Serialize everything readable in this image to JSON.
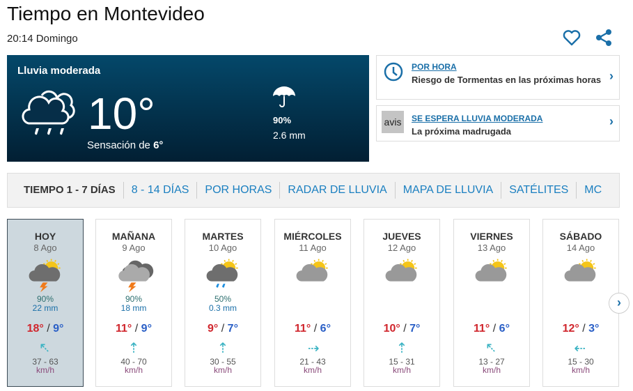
{
  "header": {
    "title": "Tiempo en Montevideo",
    "subtitle": "20:14 Domingo",
    "icons": [
      "heart-icon",
      "share-icon"
    ]
  },
  "now": {
    "condition": "Lluvia moderada",
    "temp": "10°",
    "feel_label": "Sensación de ",
    "feel_value": "6°",
    "rain_prob": "90%",
    "rain_mm": "2.6 mm",
    "icon": "cloud-rain-icon"
  },
  "alerts": [
    {
      "link": "POR HORA",
      "text": "Riesgo de Tormentas en las próximas horas",
      "icon": "clock-icon"
    },
    {
      "link": "SE ESPERA LLUVIA MODERADA",
      "text": "La próxima madrugada",
      "badge": "avis"
    }
  ],
  "tabs": [
    "TIEMPO 1 - 7 DÍAS",
    "8 - 14 DÍAS",
    "POR HORAS",
    "RADAR DE LLUVIA",
    "MAPA DE LLUVIA",
    "SATÉLITES",
    "MC"
  ],
  "colors": {
    "max": "#d0262d",
    "min": "#2a5fc6",
    "link": "#1a7fc0",
    "wind": "#3bb3c3"
  },
  "days": [
    {
      "name": "HOY",
      "date": "8 Ago",
      "icon": "storm-sun",
      "prob": "90%",
      "mm": "22 mm",
      "max": "18°",
      "min": "9°",
      "wind_dir": "NW",
      "wind": "37 - 63",
      "unit": "km/h"
    },
    {
      "name": "MAÑANA",
      "date": "9 Ago",
      "icon": "storm-cloudy",
      "prob": "90%",
      "mm": "18 mm",
      "max": "11°",
      "min": "9°",
      "wind_dir": "N",
      "wind": "40 - 70",
      "unit": "km/h"
    },
    {
      "name": "MARTES",
      "date": "10 Ago",
      "icon": "rain-sun",
      "prob": "50%",
      "mm": "0.3 mm",
      "max": "9°",
      "min": "7°",
      "wind_dir": "N",
      "wind": "30 - 55",
      "unit": "km/h"
    },
    {
      "name": "MIÉRCOLES",
      "date": "11 Ago",
      "icon": "cloud-sun",
      "prob": "",
      "mm": "",
      "max": "11°",
      "min": "6°",
      "wind_dir": "E",
      "wind": "21 - 43",
      "unit": "km/h"
    },
    {
      "name": "JUEVES",
      "date": "12 Ago",
      "icon": "cloud-sun",
      "prob": "",
      "mm": "",
      "max": "10°",
      "min": "7°",
      "wind_dir": "N",
      "wind": "15 - 31",
      "unit": "km/h"
    },
    {
      "name": "VIERNES",
      "date": "13 Ago",
      "icon": "cloud-sun",
      "prob": "",
      "mm": "",
      "max": "11°",
      "min": "6°",
      "wind_dir": "NW",
      "wind": "13 - 27",
      "unit": "km/h"
    },
    {
      "name": "SÁBADO",
      "date": "14 Ago",
      "icon": "cloud-sun",
      "prob": "",
      "mm": "",
      "max": "12°",
      "min": "3°",
      "wind_dir": "W",
      "wind": "15 - 30",
      "unit": "km/h"
    }
  ]
}
